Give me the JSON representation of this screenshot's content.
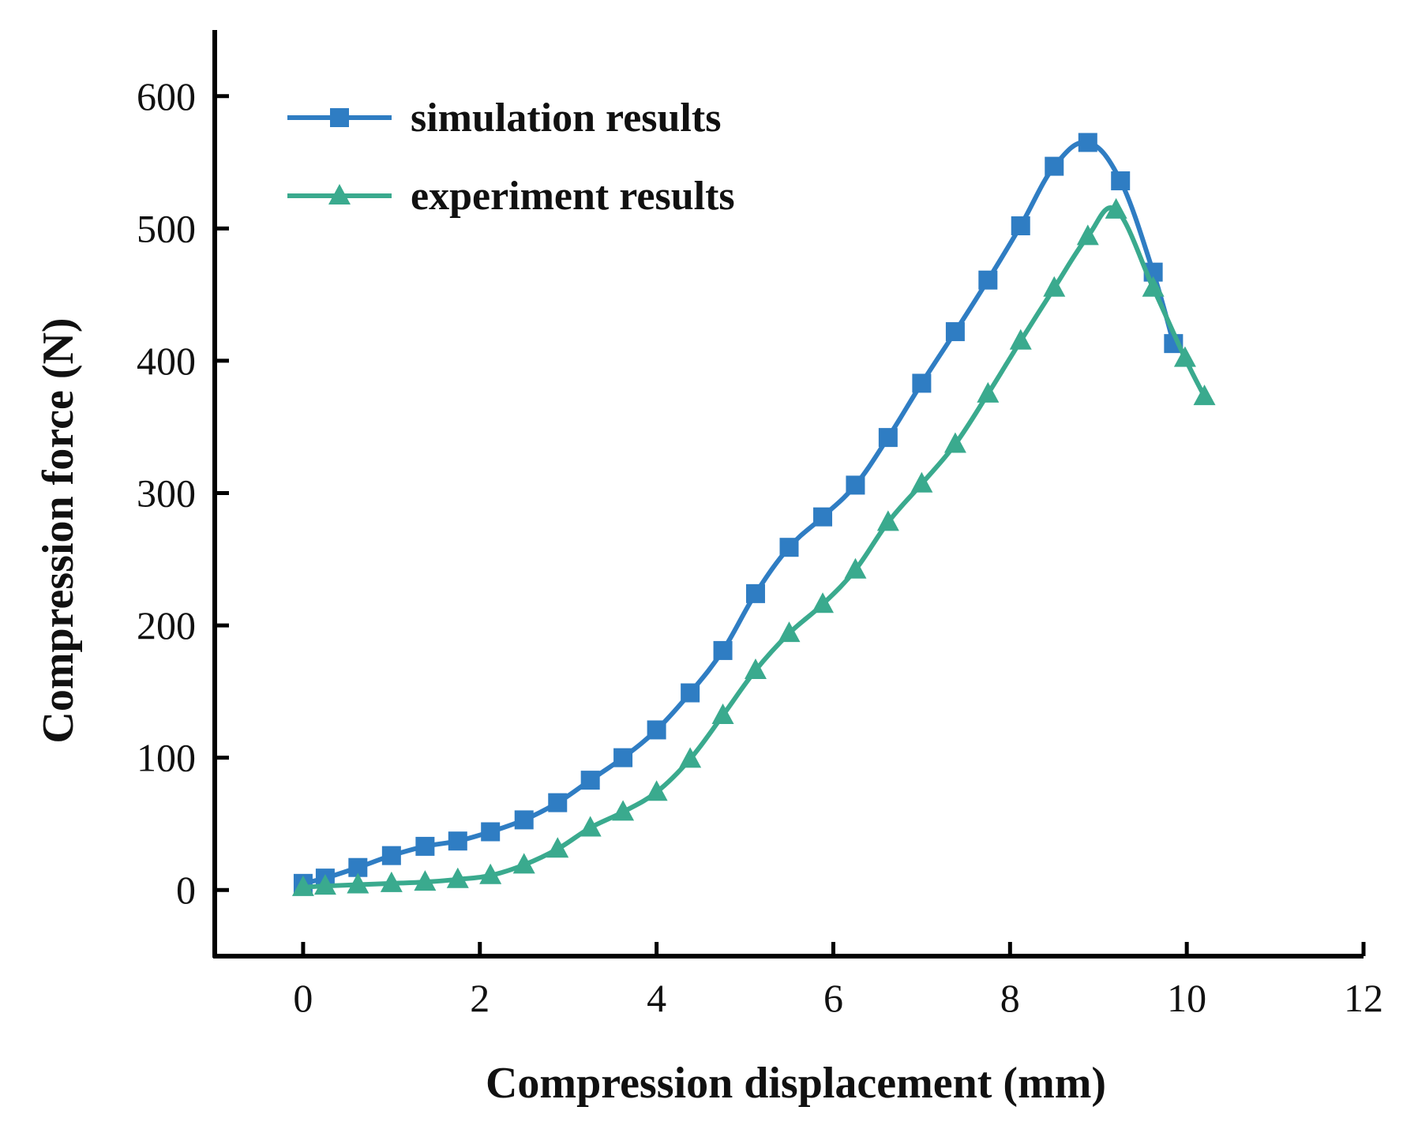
{
  "chart_data": {
    "type": "line",
    "title": "",
    "xlabel": "Compression displacement (mm)",
    "ylabel": "Compression force (N)",
    "xlim": [
      -1,
      12
    ],
    "ylim": [
      -50,
      650
    ],
    "xticks": [
      0,
      2,
      4,
      6,
      8,
      10,
      12
    ],
    "xtick_labels": [
      "0",
      "2",
      "4",
      "6",
      "8",
      "10",
      "12"
    ],
    "yticks": [
      0,
      100,
      200,
      300,
      400,
      500,
      600
    ],
    "ytick_labels": [
      "0",
      "100",
      "200",
      "300",
      "400",
      "500",
      "600"
    ],
    "grid": false,
    "legend_position": "top-left",
    "series": [
      {
        "name": "simulation results",
        "color": "#2f7dc3",
        "marker": "square",
        "x": [
          0.0,
          0.25,
          0.62,
          1.0,
          1.38,
          1.75,
          2.12,
          2.5,
          2.88,
          3.25,
          3.62,
          4.0,
          4.38,
          4.75,
          5.12,
          5.5,
          5.88,
          6.25,
          6.62,
          7.0,
          7.38,
          7.75,
          8.12,
          8.5,
          8.88,
          9.25,
          9.62,
          9.85
        ],
        "values": [
          5,
          9,
          17,
          26,
          33,
          37,
          44,
          53,
          66,
          83,
          100,
          121,
          149,
          181,
          224,
          259,
          282,
          306,
          342,
          383,
          422,
          461,
          502,
          547,
          565,
          536,
          467,
          413
        ]
      },
      {
        "name": "experiment results",
        "color": "#3aaa8e",
        "marker": "triangle",
        "x": [
          0.0,
          0.25,
          0.62,
          1.0,
          1.38,
          1.75,
          2.12,
          2.5,
          2.88,
          3.25,
          3.62,
          4.0,
          4.38,
          4.75,
          5.12,
          5.5,
          5.88,
          6.25,
          6.62,
          7.0,
          7.38,
          7.75,
          8.12,
          8.5,
          8.88,
          9.2,
          9.62,
          9.98,
          10.2
        ],
        "values": [
          2,
          3,
          4,
          5,
          6,
          8,
          11,
          19,
          31,
          47,
          59,
          74,
          99,
          132,
          166,
          194,
          216,
          242,
          278,
          307,
          337,
          375,
          415,
          455,
          494,
          514,
          455,
          402,
          373
        ]
      }
    ]
  }
}
